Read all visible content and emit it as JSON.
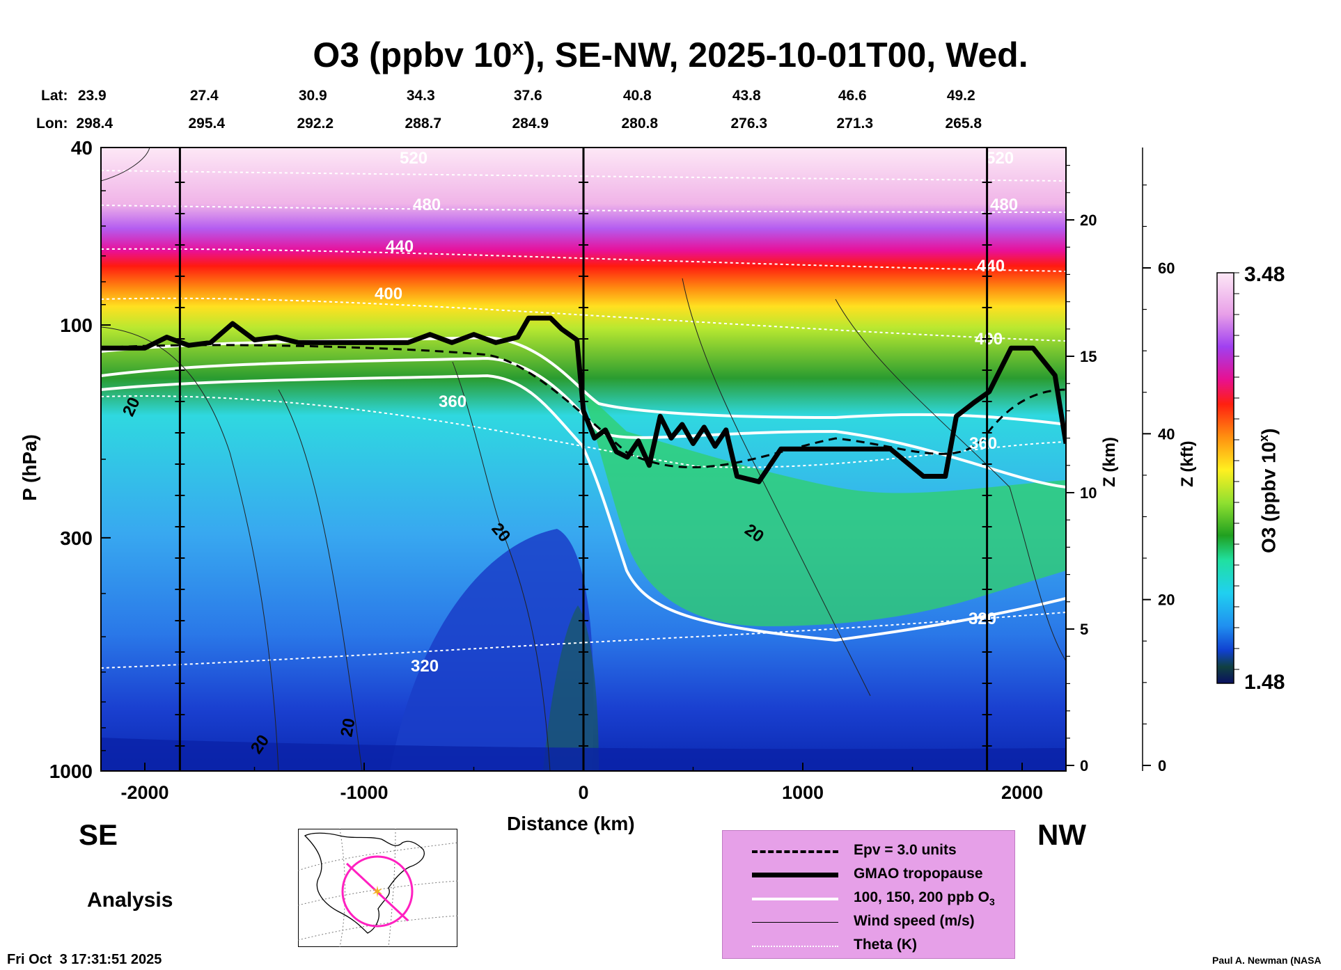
{
  "title": {
    "main": "O3 (ppbv 10",
    "sup": "x",
    "rest": "), SE-NW, 2025-10-01T00, Wed."
  },
  "header": {
    "lat_label": "Lat:",
    "lon_label": "Lon:",
    "lat": [
      "23.9",
      "27.4",
      "30.9",
      "34.3",
      "37.6",
      "40.8",
      "43.8",
      "46.6",
      "49.2"
    ],
    "lon": [
      "298.4",
      "295.4",
      "292.2",
      "288.7",
      "284.9",
      "280.8",
      "276.3",
      "271.3",
      "265.8"
    ]
  },
  "chart_data": {
    "type": "heatmap",
    "title": "O3 (ppbv 10^x), SE-NW, 2025-10-01T00, Wed.",
    "xlabel": "Distance (km)",
    "ylabel": "P (hPa)",
    "y_scale": "log",
    "xlim": [
      -2200,
      2200
    ],
    "ylim": [
      1000,
      40
    ],
    "x_ticks": [
      "-2000",
      "-1000",
      "0",
      "1000",
      "2000"
    ],
    "y_ticks": [
      "40",
      "100",
      "300",
      "1000"
    ],
    "z_km_label": "Z (km)",
    "z_km_ticks": [
      "0",
      "5",
      "10",
      "15",
      "20"
    ],
    "z_kft_label": "Z (kft)",
    "z_kft_ticks": [
      "0",
      "20",
      "40",
      "60"
    ],
    "colorbar": {
      "label": "O3 (ppbv 10",
      "label_sup": "x",
      "label_end": ")",
      "max": "3.48",
      "min": "1.48"
    },
    "theta_labels": [
      "520",
      "480",
      "440",
      "400",
      "360",
      "320"
    ],
    "wind_labels": [
      "20"
    ],
    "tropopause_km": [
      [
        -2200,
        15.3
      ],
      [
        -2000,
        15.3
      ],
      [
        -1900,
        15.7
      ],
      [
        -1800,
        15.4
      ],
      [
        -1700,
        15.5
      ],
      [
        -1600,
        16.2
      ],
      [
        -1500,
        15.6
      ],
      [
        -1400,
        15.7
      ],
      [
        -1300,
        15.5
      ],
      [
        -1200,
        15.5
      ],
      [
        -1000,
        15.5
      ],
      [
        -800,
        15.5
      ],
      [
        -700,
        15.8
      ],
      [
        -600,
        15.5
      ],
      [
        -500,
        15.8
      ],
      [
        -400,
        15.5
      ],
      [
        -300,
        15.7
      ],
      [
        -250,
        16.4
      ],
      [
        -150,
        16.4
      ],
      [
        -100,
        16.0
      ],
      [
        -30,
        15.6
      ],
      [
        0,
        13.0
      ],
      [
        50,
        12.0
      ],
      [
        100,
        12.3
      ],
      [
        150,
        11.5
      ],
      [
        200,
        11.3
      ],
      [
        250,
        11.9
      ],
      [
        300,
        11.0
      ],
      [
        350,
        12.8
      ],
      [
        400,
        12.0
      ],
      [
        450,
        12.5
      ],
      [
        500,
        11.8
      ],
      [
        550,
        12.4
      ],
      [
        600,
        11.7
      ],
      [
        650,
        12.3
      ],
      [
        700,
        10.6
      ],
      [
        800,
        10.4
      ],
      [
        900,
        11.6
      ],
      [
        1000,
        11.6
      ],
      [
        1200,
        11.6
      ],
      [
        1400,
        11.6
      ],
      [
        1550,
        10.6
      ],
      [
        1650,
        10.6
      ],
      [
        1700,
        12.8
      ],
      [
        1780,
        13.3
      ],
      [
        1850,
        13.7
      ],
      [
        1950,
        15.3
      ],
      [
        2050,
        15.3
      ],
      [
        2150,
        14.3
      ],
      [
        2200,
        11.8
      ]
    ]
  },
  "bottom": {
    "se_label": "SE",
    "nw_label": "NW",
    "analysis_label": "Analysis",
    "timestamp": "Fri Oct  3 17:31:51 2025",
    "credit": "Paul A. Newman (NASA"
  },
  "legend": {
    "epv": "Epv = 3.0 units",
    "tropopause": "GMAO tropopause",
    "ozone": "100, 150, 200 ppb O",
    "ozone_sub": "3",
    "wind": "Wind speed (m/s)",
    "theta": "Theta (K)"
  }
}
